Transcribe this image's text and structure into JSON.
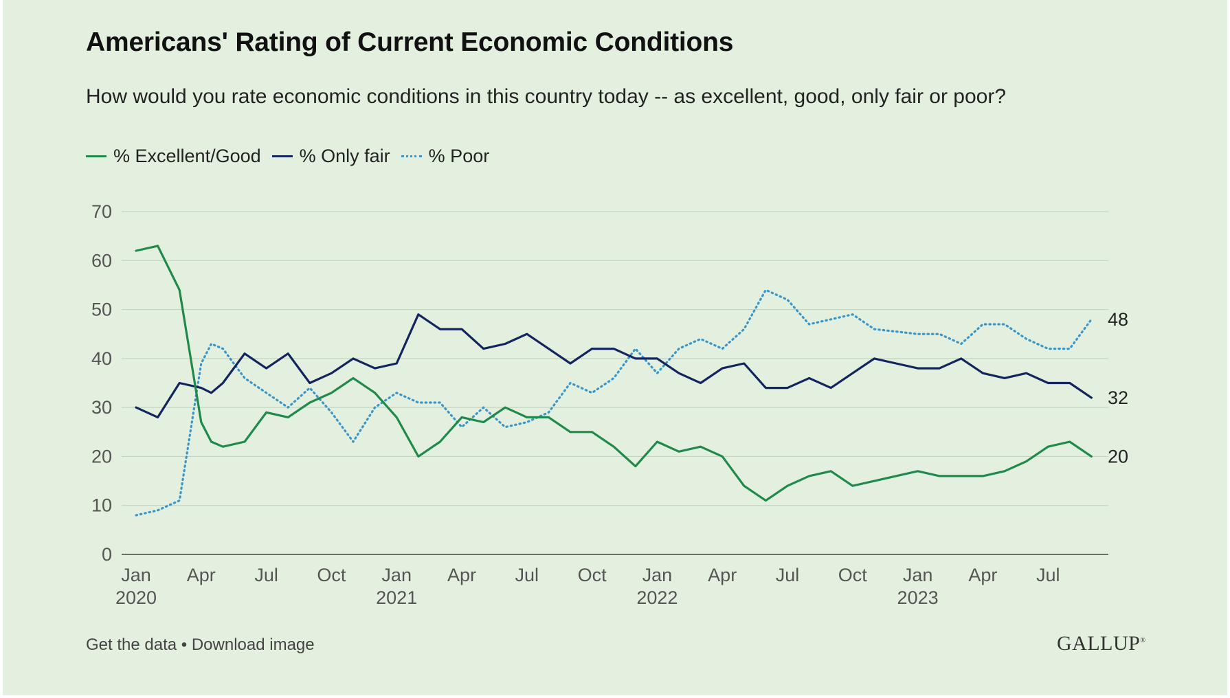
{
  "chart_data": {
    "type": "line",
    "title": "Americans' Rating of Current Economic Conditions",
    "subtitle": "How would you rate economic conditions in this country today -- as excellent, good, only fair or poor?",
    "ylim": [
      0,
      70
    ],
    "yticks": [
      0,
      10,
      20,
      30,
      40,
      50,
      60,
      70
    ],
    "grid": true,
    "legend_position": "top-left",
    "x_start": "2020-01",
    "x_end": "2023-09",
    "xticks": [
      {
        "month": "2020-01",
        "label": "Jan",
        "year": "2020"
      },
      {
        "month": "2020-04",
        "label": "Apr",
        "year": ""
      },
      {
        "month": "2020-07",
        "label": "Jul",
        "year": ""
      },
      {
        "month": "2020-10",
        "label": "Oct",
        "year": ""
      },
      {
        "month": "2021-01",
        "label": "Jan",
        "year": "2021"
      },
      {
        "month": "2021-04",
        "label": "Apr",
        "year": ""
      },
      {
        "month": "2021-07",
        "label": "Jul",
        "year": ""
      },
      {
        "month": "2021-10",
        "label": "Oct",
        "year": ""
      },
      {
        "month": "2022-01",
        "label": "Jan",
        "year": "2022"
      },
      {
        "month": "2022-04",
        "label": "Apr",
        "year": ""
      },
      {
        "month": "2022-07",
        "label": "Jul",
        "year": ""
      },
      {
        "month": "2022-10",
        "label": "Oct",
        "year": ""
      },
      {
        "month": "2023-01",
        "label": "Jan",
        "year": "2023"
      },
      {
        "month": "2023-04",
        "label": "Apr",
        "year": ""
      },
      {
        "month": "2023-07",
        "label": "Jul",
        "year": ""
      }
    ],
    "series": [
      {
        "name": "% Excellent/Good",
        "color": "#1f8a4c",
        "style": "solid",
        "end_label": "20",
        "points": [
          [
            "2020-01-01",
            62
          ],
          [
            "2020-02-01",
            63
          ],
          [
            "2020-03-01",
            54
          ],
          [
            "2020-04-01",
            27
          ],
          [
            "2020-04-15",
            23
          ],
          [
            "2020-05-01",
            22
          ],
          [
            "2020-06-01",
            23
          ],
          [
            "2020-07-01",
            29
          ],
          [
            "2020-08-01",
            28
          ],
          [
            "2020-09-01",
            31
          ],
          [
            "2020-10-01",
            33
          ],
          [
            "2020-11-01",
            36
          ],
          [
            "2020-12-01",
            33
          ],
          [
            "2021-01-01",
            28
          ],
          [
            "2021-02-01",
            20
          ],
          [
            "2021-03-01",
            23
          ],
          [
            "2021-04-01",
            28
          ],
          [
            "2021-05-01",
            27
          ],
          [
            "2021-06-01",
            30
          ],
          [
            "2021-07-01",
            28
          ],
          [
            "2021-08-01",
            28
          ],
          [
            "2021-09-01",
            25
          ],
          [
            "2021-10-01",
            25
          ],
          [
            "2021-11-01",
            22
          ],
          [
            "2021-12-01",
            18
          ],
          [
            "2022-01-01",
            23
          ],
          [
            "2022-02-01",
            21
          ],
          [
            "2022-03-01",
            22
          ],
          [
            "2022-04-01",
            20
          ],
          [
            "2022-05-01",
            14
          ],
          [
            "2022-06-01",
            11
          ],
          [
            "2022-07-01",
            14
          ],
          [
            "2022-08-01",
            16
          ],
          [
            "2022-09-01",
            17
          ],
          [
            "2022-10-01",
            14
          ],
          [
            "2022-11-01",
            15
          ],
          [
            "2022-12-01",
            16
          ],
          [
            "2023-01-01",
            17
          ],
          [
            "2023-02-01",
            16
          ],
          [
            "2023-03-01",
            16
          ],
          [
            "2023-04-01",
            16
          ],
          [
            "2023-05-01",
            17
          ],
          [
            "2023-06-01",
            19
          ],
          [
            "2023-07-01",
            22
          ],
          [
            "2023-08-01",
            23
          ],
          [
            "2023-09-01",
            20
          ]
        ]
      },
      {
        "name": "% Only fair",
        "color": "#13255f",
        "style": "solid",
        "end_label": "32",
        "points": [
          [
            "2020-01-01",
            30
          ],
          [
            "2020-02-01",
            28
          ],
          [
            "2020-03-01",
            35
          ],
          [
            "2020-04-01",
            34
          ],
          [
            "2020-04-15",
            33
          ],
          [
            "2020-05-01",
            35
          ],
          [
            "2020-06-01",
            41
          ],
          [
            "2020-07-01",
            38
          ],
          [
            "2020-08-01",
            41
          ],
          [
            "2020-09-01",
            35
          ],
          [
            "2020-10-01",
            37
          ],
          [
            "2020-11-01",
            40
          ],
          [
            "2020-12-01",
            38
          ],
          [
            "2021-01-01",
            39
          ],
          [
            "2021-02-01",
            49
          ],
          [
            "2021-03-01",
            46
          ],
          [
            "2021-04-01",
            46
          ],
          [
            "2021-05-01",
            42
          ],
          [
            "2021-06-01",
            43
          ],
          [
            "2021-07-01",
            45
          ],
          [
            "2021-08-01",
            42
          ],
          [
            "2021-09-01",
            39
          ],
          [
            "2021-10-01",
            42
          ],
          [
            "2021-11-01",
            42
          ],
          [
            "2021-12-01",
            40
          ],
          [
            "2022-01-01",
            40
          ],
          [
            "2022-02-01",
            37
          ],
          [
            "2022-03-01",
            35
          ],
          [
            "2022-04-01",
            38
          ],
          [
            "2022-05-01",
            39
          ],
          [
            "2022-06-01",
            34
          ],
          [
            "2022-07-01",
            34
          ],
          [
            "2022-08-01",
            36
          ],
          [
            "2022-09-01",
            34
          ],
          [
            "2022-10-01",
            37
          ],
          [
            "2022-11-01",
            40
          ],
          [
            "2022-12-01",
            39
          ],
          [
            "2023-01-01",
            38
          ],
          [
            "2023-02-01",
            38
          ],
          [
            "2023-03-01",
            40
          ],
          [
            "2023-04-01",
            37
          ],
          [
            "2023-05-01",
            36
          ],
          [
            "2023-06-01",
            37
          ],
          [
            "2023-07-01",
            35
          ],
          [
            "2023-08-01",
            35
          ],
          [
            "2023-09-01",
            32
          ]
        ]
      },
      {
        "name": "% Poor",
        "color": "#3a95c9",
        "style": "dotted",
        "end_label": "48",
        "points": [
          [
            "2020-01-01",
            8
          ],
          [
            "2020-02-01",
            9
          ],
          [
            "2020-03-01",
            11
          ],
          [
            "2020-04-01",
            39
          ],
          [
            "2020-04-15",
            43
          ],
          [
            "2020-05-01",
            42
          ],
          [
            "2020-06-01",
            36
          ],
          [
            "2020-07-01",
            33
          ],
          [
            "2020-08-01",
            30
          ],
          [
            "2020-09-01",
            34
          ],
          [
            "2020-10-01",
            29
          ],
          [
            "2020-11-01",
            23
          ],
          [
            "2020-12-01",
            30
          ],
          [
            "2021-01-01",
            33
          ],
          [
            "2021-02-01",
            31
          ],
          [
            "2021-03-01",
            31
          ],
          [
            "2021-04-01",
            26
          ],
          [
            "2021-05-01",
            30
          ],
          [
            "2021-06-01",
            26
          ],
          [
            "2021-07-01",
            27
          ],
          [
            "2021-08-01",
            29
          ],
          [
            "2021-09-01",
            35
          ],
          [
            "2021-10-01",
            33
          ],
          [
            "2021-11-01",
            36
          ],
          [
            "2021-12-01",
            42
          ],
          [
            "2022-01-01",
            37
          ],
          [
            "2022-02-01",
            42
          ],
          [
            "2022-03-01",
            44
          ],
          [
            "2022-04-01",
            42
          ],
          [
            "2022-05-01",
            46
          ],
          [
            "2022-06-01",
            54
          ],
          [
            "2022-07-01",
            52
          ],
          [
            "2022-08-01",
            47
          ],
          [
            "2022-09-01",
            48
          ],
          [
            "2022-10-01",
            49
          ],
          [
            "2022-11-01",
            46
          ],
          [
            "2022-12-01",
            45.5
          ],
          [
            "2023-01-01",
            45
          ],
          [
            "2023-02-01",
            45
          ],
          [
            "2023-03-01",
            43
          ],
          [
            "2023-04-01",
            47
          ],
          [
            "2023-05-01",
            47
          ],
          [
            "2023-06-01",
            44
          ],
          [
            "2023-07-01",
            42
          ],
          [
            "2023-08-01",
            42
          ],
          [
            "2023-09-01",
            48
          ]
        ]
      }
    ]
  },
  "footer": {
    "get_data": "Get the data",
    "separator": "•",
    "download": "Download image",
    "brand": "GALLUP",
    "brand_mark": "®"
  }
}
